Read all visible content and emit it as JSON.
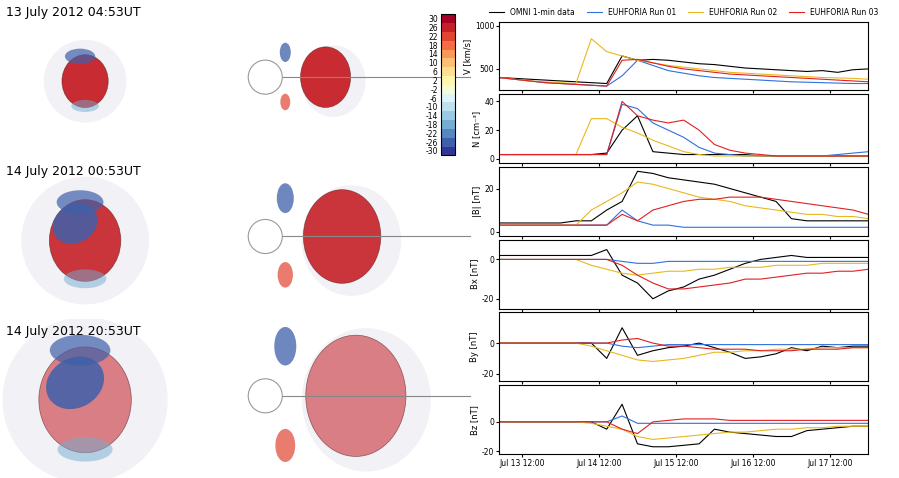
{
  "snapshots": [
    {
      "label": "13 July 2012 04:53UT"
    },
    {
      "label": "14 July 2012 00:53UT"
    },
    {
      "label": "14 July 2012 20:53UT"
    }
  ],
  "colorbar": {
    "range": [
      -32,
      32
    ],
    "ticks": [
      30,
      26,
      22,
      18,
      14,
      10,
      6,
      2,
      -2,
      -6,
      -10,
      -14,
      -18,
      -22,
      -26,
      -30
    ]
  },
  "chart_data": [
    {
      "type": "line",
      "ylabel": "V [km/s]",
      "legend": "lower center",
      "tick_labels": "y",
      "x": [
        13.2,
        13.4,
        13.6,
        13.8,
        14.0,
        14.2,
        14.4,
        14.6,
        14.8,
        15.0,
        15.2,
        15.4,
        15.6,
        15.8,
        16.0,
        16.2,
        16.4,
        16.6,
        16.8,
        17.0,
        17.2,
        17.4,
        17.6,
        17.8,
        18.0
      ],
      "xlim": [
        13.2,
        18.0
      ],
      "ylim": [
        250,
        1050
      ],
      "yticks": [
        500,
        1000
      ],
      "xticks": [
        {
          "value": 13.5,
          "label": "Jul 13 12:00"
        },
        {
          "value": 14.5,
          "label": "Jul 14 12:00"
        },
        {
          "value": 15.5,
          "label": "Jul 15 12:00"
        },
        {
          "value": 16.5,
          "label": "Jul 16 12:00"
        },
        {
          "value": 17.5,
          "label": "Jul 17 12:00"
        }
      ],
      "series": [
        {
          "name": "OMNI 1-min data",
          "color": "#000000",
          "values": [
            400,
            390,
            380,
            370,
            360,
            350,
            340,
            330,
            650,
            600,
            610,
            600,
            580,
            560,
            550,
            530,
            510,
            500,
            490,
            480,
            470,
            480,
            460,
            490,
            500
          ]
        },
        {
          "name": "EUHFORIA Run 01",
          "color": "#3070e0",
          "values": [
            400,
            380,
            360,
            340,
            330,
            320,
            310,
            300,
            420,
            600,
            540,
            480,
            450,
            420,
            400,
            390,
            380,
            370,
            360,
            350,
            345,
            340,
            335,
            330,
            330
          ]
        },
        {
          "name": "EUHFORIA Run 02",
          "color": "#e8b820",
          "values": [
            400,
            380,
            360,
            350,
            340,
            330,
            850,
            700,
            650,
            600,
            570,
            540,
            520,
            500,
            480,
            460,
            450,
            440,
            430,
            420,
            410,
            400,
            395,
            390,
            380
          ]
        },
        {
          "name": "EUHFORIA Run 03",
          "color": "#e02020",
          "values": [
            400,
            380,
            360,
            340,
            330,
            320,
            310,
            300,
            600,
            610,
            570,
            530,
            500,
            480,
            460,
            440,
            430,
            420,
            410,
            400,
            390,
            380,
            370,
            360,
            350
          ]
        }
      ]
    },
    {
      "type": "line",
      "ylabel": "N [cm⁻³]",
      "tick_labels": "y",
      "x": [
        13.2,
        13.4,
        13.6,
        13.8,
        14.0,
        14.2,
        14.4,
        14.6,
        14.8,
        15.0,
        15.2,
        15.4,
        15.6,
        15.8,
        16.0,
        16.2,
        16.4,
        16.6,
        16.8,
        17.0,
        17.2,
        17.4,
        17.6,
        17.8,
        18.0
      ],
      "xlim": [
        13.2,
        18.0
      ],
      "ylim": [
        -3,
        45
      ],
      "yticks": [
        0,
        20,
        40
      ],
      "xticks": [
        {
          "value": 13.5,
          "label": "Jul 13 12:00"
        },
        {
          "value": 14.5,
          "label": "Jul 14 12:00"
        },
        {
          "value": 15.5,
          "label": "Jul 15 12:00"
        },
        {
          "value": 16.5,
          "label": "Jul 16 12:00"
        },
        {
          "value": 17.5,
          "label": "Jul 17 12:00"
        }
      ],
      "series": [
        {
          "name": "OMNI 1-min data",
          "color": "#000000",
          "values": [
            3,
            3,
            3,
            3,
            3,
            3,
            3,
            4,
            20,
            30,
            5,
            4,
            3,
            3,
            3,
            3,
            3,
            2,
            2,
            2,
            2,
            2,
            2,
            2,
            2
          ]
        },
        {
          "name": "EUHFORIA Run 01",
          "color": "#3070e0",
          "values": [
            3,
            3,
            3,
            3,
            3,
            3,
            3,
            3,
            38,
            35,
            25,
            20,
            15,
            8,
            4,
            3,
            2,
            2,
            2,
            2,
            2,
            2,
            3,
            4,
            5
          ]
        },
        {
          "name": "EUHFORIA Run 02",
          "color": "#e8b820",
          "values": [
            3,
            3,
            3,
            3,
            3,
            3,
            28,
            28,
            22,
            18,
            13,
            9,
            5,
            3,
            2,
            2,
            2,
            2,
            2,
            2,
            2,
            2,
            2,
            2,
            2
          ]
        },
        {
          "name": "EUHFORIA Run 03",
          "color": "#e02020",
          "values": [
            3,
            3,
            3,
            3,
            3,
            3,
            3,
            3,
            40,
            30,
            27,
            25,
            27,
            20,
            10,
            6,
            4,
            3,
            2,
            2,
            2,
            2,
            2,
            2,
            2
          ]
        }
      ]
    },
    {
      "type": "line",
      "ylabel": "|B| [nT]",
      "tick_labels": "y",
      "x": [
        13.2,
        13.4,
        13.6,
        13.8,
        14.0,
        14.2,
        14.4,
        14.6,
        14.8,
        15.0,
        15.2,
        15.4,
        15.6,
        15.8,
        16.0,
        16.2,
        16.4,
        16.6,
        16.8,
        17.0,
        17.2,
        17.4,
        17.6,
        17.8,
        18.0
      ],
      "xlim": [
        13.2,
        18.0
      ],
      "ylim": [
        -2,
        30
      ],
      "yticks": [
        0,
        20
      ],
      "xticks": [
        {
          "value": 13.5,
          "label": "Jul 13 12:00"
        },
        {
          "value": 14.5,
          "label": "Jul 14 12:00"
        },
        {
          "value": 15.5,
          "label": "Jul 15 12:00"
        },
        {
          "value": 16.5,
          "label": "Jul 16 12:00"
        },
        {
          "value": 17.5,
          "label": "Jul 17 12:00"
        }
      ],
      "series": [
        {
          "name": "OMNI 1-min data",
          "color": "#000000",
          "values": [
            4,
            4,
            4,
            4,
            4,
            5,
            5,
            10,
            14,
            28,
            27,
            25,
            24,
            23,
            22,
            20,
            18,
            16,
            14,
            6,
            5,
            5,
            5,
            5,
            5
          ]
        },
        {
          "name": "EUHFORIA Run 01",
          "color": "#3070e0",
          "values": [
            3,
            3,
            3,
            3,
            3,
            3,
            3,
            3,
            10,
            5,
            3,
            3,
            2,
            2,
            2,
            2,
            2,
            2,
            2,
            2,
            2,
            2,
            2,
            2,
            2
          ]
        },
        {
          "name": "EUHFORIA Run 02",
          "color": "#e8b820",
          "values": [
            3,
            3,
            3,
            3,
            3,
            3,
            10,
            14,
            18,
            23,
            22,
            20,
            18,
            16,
            15,
            14,
            12,
            11,
            10,
            9,
            8,
            8,
            7,
            7,
            6
          ]
        },
        {
          "name": "EUHFORIA Run 03",
          "color": "#e02020",
          "values": [
            3,
            3,
            3,
            3,
            3,
            3,
            3,
            3,
            8,
            5,
            10,
            12,
            14,
            15,
            15,
            16,
            16,
            16,
            15,
            14,
            13,
            12,
            11,
            10,
            8
          ]
        }
      ]
    },
    {
      "type": "line",
      "ylabel": "Bx [nT]",
      "tick_labels": "y",
      "x": [
        13.2,
        13.4,
        13.6,
        13.8,
        14.0,
        14.2,
        14.4,
        14.6,
        14.8,
        15.0,
        15.2,
        15.4,
        15.6,
        15.8,
        16.0,
        16.2,
        16.4,
        16.6,
        16.8,
        17.0,
        17.2,
        17.4,
        17.6,
        17.8,
        18.0
      ],
      "xlim": [
        13.2,
        18.0
      ],
      "ylim": [
        -25,
        10
      ],
      "yticks": [
        -20,
        0
      ],
      "xticks": [
        {
          "value": 13.5,
          "label": "Jul 13 12:00"
        },
        {
          "value": 14.5,
          "label": "Jul 14 12:00"
        },
        {
          "value": 15.5,
          "label": "Jul 15 12:00"
        },
        {
          "value": 16.5,
          "label": "Jul 16 12:00"
        },
        {
          "value": 17.5,
          "label": "Jul 17 12:00"
        }
      ],
      "series": [
        {
          "name": "OMNI 1-min data",
          "color": "#000000",
          "values": [
            2,
            2,
            2,
            2,
            2,
            2,
            2,
            5,
            -8,
            -12,
            -20,
            -16,
            -14,
            -10,
            -8,
            -5,
            -2,
            0,
            1,
            2,
            1,
            1,
            1,
            1,
            1
          ]
        },
        {
          "name": "EUHFORIA Run 01",
          "color": "#3070e0",
          "values": [
            0,
            0,
            0,
            0,
            0,
            0,
            0,
            0,
            -1,
            -2,
            -2,
            -1,
            -1,
            -1,
            -1,
            -1,
            -1,
            -1,
            -1,
            -1,
            -1,
            -1,
            -1,
            -1,
            -1
          ]
        },
        {
          "name": "EUHFORIA Run 02",
          "color": "#e8b820",
          "values": [
            0,
            0,
            0,
            0,
            0,
            0,
            -3,
            -5,
            -7,
            -8,
            -7,
            -6,
            -6,
            -5,
            -5,
            -4,
            -4,
            -4,
            -3,
            -3,
            -3,
            -2,
            -2,
            -2,
            -2
          ]
        },
        {
          "name": "EUHFORIA Run 03",
          "color": "#e02020",
          "values": [
            0,
            0,
            0,
            0,
            0,
            0,
            0,
            0,
            -3,
            -8,
            -12,
            -15,
            -15,
            -14,
            -13,
            -12,
            -10,
            -10,
            -9,
            -8,
            -7,
            -7,
            -6,
            -6,
            -5
          ]
        }
      ]
    },
    {
      "type": "line",
      "ylabel": "By [nT]",
      "tick_labels": "y",
      "x": [
        13.2,
        13.4,
        13.6,
        13.8,
        14.0,
        14.2,
        14.4,
        14.6,
        14.8,
        15.0,
        15.2,
        15.4,
        15.6,
        15.8,
        16.0,
        16.2,
        16.4,
        16.6,
        16.8,
        17.0,
        17.2,
        17.4,
        17.6,
        17.8,
        18.0
      ],
      "xlim": [
        13.2,
        18.0
      ],
      "ylim": [
        -25,
        20
      ],
      "yticks": [
        -20,
        0
      ],
      "xticks": [
        {
          "value": 13.5,
          "label": "Jul 13 12:00"
        },
        {
          "value": 14.5,
          "label": "Jul 14 12:00"
        },
        {
          "value": 15.5,
          "label": "Jul 15 12:00"
        },
        {
          "value": 16.5,
          "label": "Jul 16 12:00"
        },
        {
          "value": 17.5,
          "label": "Jul 17 12:00"
        }
      ],
      "series": [
        {
          "name": "OMNI 1-min data",
          "color": "#000000",
          "values": [
            0,
            0,
            0,
            0,
            0,
            0,
            0,
            -10,
            10,
            -8,
            -5,
            -3,
            -2,
            0,
            -3,
            -6,
            -10,
            -9,
            -7,
            -3,
            -5,
            -2,
            -3,
            -2,
            -2
          ]
        },
        {
          "name": "EUHFORIA Run 01",
          "color": "#3070e0",
          "values": [
            0,
            0,
            0,
            0,
            0,
            0,
            0,
            0,
            -2,
            -3,
            -2,
            -1,
            -1,
            -1,
            -1,
            -1,
            -1,
            -1,
            -1,
            -1,
            -1,
            -1,
            -1,
            -1,
            -1
          ]
        },
        {
          "name": "EUHFORIA Run 02",
          "color": "#e8b820",
          "values": [
            0,
            0,
            0,
            0,
            0,
            0,
            -2,
            -5,
            -8,
            -11,
            -12,
            -11,
            -10,
            -8,
            -6,
            -6,
            -5,
            -5,
            -4,
            -4,
            -4,
            -3,
            -3,
            -3,
            -3
          ]
        },
        {
          "name": "EUHFORIA Run 03",
          "color": "#e02020",
          "values": [
            0,
            0,
            0,
            0,
            0,
            0,
            0,
            0,
            2,
            3,
            0,
            -2,
            -2,
            -3,
            -4,
            -4,
            -4,
            -5,
            -5,
            -5,
            -4,
            -4,
            -4,
            -3,
            -3
          ]
        }
      ]
    },
    {
      "type": "line",
      "ylabel": "Bz [nT]",
      "x": [
        13.2,
        13.4,
        13.6,
        13.8,
        14.0,
        14.2,
        14.4,
        14.6,
        14.8,
        15.0,
        15.2,
        15.4,
        15.6,
        15.8,
        16.0,
        16.2,
        16.4,
        16.6,
        16.8,
        17.0,
        17.2,
        17.4,
        17.6,
        17.8,
        18.0
      ],
      "xlim": [
        13.2,
        18.0
      ],
      "ylim": [
        -22,
        25
      ],
      "yticks": [
        -20,
        0
      ],
      "xticks": [
        {
          "value": 13.5,
          "label": "Jul 13 12:00"
        },
        {
          "value": 14.5,
          "label": "Jul 14 12:00"
        },
        {
          "value": 15.5,
          "label": "Jul 15 12:00"
        },
        {
          "value": 16.5,
          "label": "Jul 16 12:00"
        },
        {
          "value": 17.5,
          "label": "Jul 17 12:00"
        }
      ],
      "series": [
        {
          "name": "OMNI 1-min data",
          "color": "#000000",
          "values": [
            0,
            0,
            0,
            0,
            0,
            0,
            0,
            -5,
            12,
            -15,
            -17,
            -17,
            -16,
            -15,
            -5,
            -7,
            -8,
            -9,
            -10,
            -10,
            -6,
            -5,
            -4,
            -3,
            -3
          ]
        },
        {
          "name": "EUHFORIA Run 01",
          "color": "#3070e0",
          "values": [
            0,
            0,
            0,
            0,
            0,
            0,
            0,
            0,
            4,
            -1,
            -1,
            -1,
            -1,
            -1,
            -1,
            -1,
            -1,
            -1,
            -1,
            -1,
            -1,
            -1,
            -1,
            -1,
            -1
          ]
        },
        {
          "name": "EUHFORIA Run 02",
          "color": "#e8b820",
          "values": [
            0,
            0,
            0,
            0,
            0,
            0,
            -1,
            -3,
            -5,
            -10,
            -12,
            -11,
            -10,
            -9,
            -8,
            -7,
            -7,
            -6,
            -5,
            -5,
            -4,
            -4,
            -3,
            -3,
            -3
          ]
        },
        {
          "name": "EUHFORIA Run 03",
          "color": "#e02020",
          "values": [
            0,
            0,
            0,
            0,
            0,
            0,
            0,
            0,
            -5,
            -8,
            0,
            1,
            2,
            2,
            2,
            1,
            1,
            1,
            1,
            1,
            1,
            1,
            1,
            1,
            1
          ]
        }
      ]
    }
  ]
}
